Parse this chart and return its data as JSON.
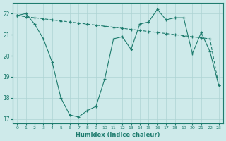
{
  "xlabel": "Humidex (Indice chaleur)",
  "xlim": [
    -0.5,
    23.5
  ],
  "ylim": [
    16.8,
    22.5
  ],
  "yticks": [
    17,
    18,
    19,
    20,
    21,
    22
  ],
  "xticks": [
    0,
    1,
    2,
    3,
    4,
    5,
    6,
    7,
    8,
    9,
    10,
    11,
    12,
    13,
    14,
    15,
    16,
    17,
    18,
    19,
    20,
    21,
    22,
    23
  ],
  "line_color": "#1e7c6e",
  "bg_color": "#ceeaea",
  "grid_color": "#aed4d4",
  "series1_x": [
    0,
    1,
    2,
    3,
    4,
    5,
    6,
    7,
    8,
    9,
    10,
    11,
    12,
    13,
    14,
    15,
    16,
    17,
    18,
    19,
    20,
    21,
    22,
    23
  ],
  "series1_y": [
    21.9,
    21.85,
    21.8,
    21.75,
    21.7,
    21.65,
    21.6,
    21.55,
    21.5,
    21.45,
    21.4,
    21.35,
    21.3,
    21.25,
    21.2,
    21.15,
    21.1,
    21.05,
    21.0,
    20.95,
    20.9,
    20.85,
    20.8,
    18.6
  ],
  "series2_x": [
    0,
    1,
    2,
    3,
    4,
    5,
    6,
    7,
    8,
    9,
    10,
    11,
    12,
    13,
    14,
    15,
    16,
    17,
    18,
    19,
    20,
    21,
    22,
    23
  ],
  "series2_y": [
    21.9,
    22.0,
    21.5,
    20.8,
    19.7,
    18.0,
    17.2,
    17.1,
    17.4,
    17.6,
    18.9,
    20.8,
    20.9,
    20.3,
    21.5,
    21.6,
    22.2,
    21.7,
    21.8,
    21.8,
    20.1,
    21.1,
    20.2,
    18.6
  ]
}
